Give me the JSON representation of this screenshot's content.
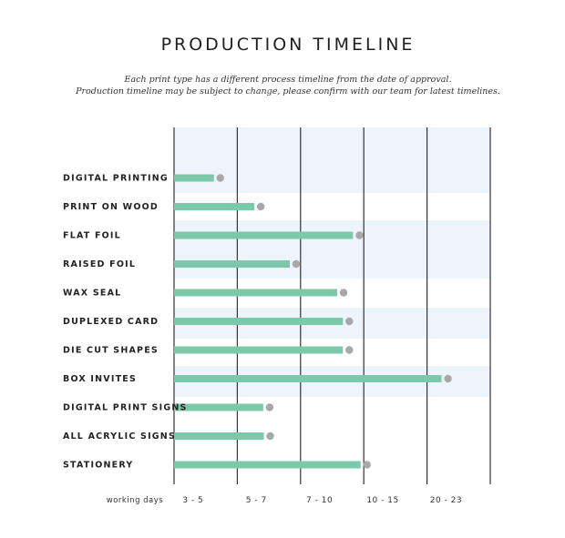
{
  "title": "PRODUCTION TIMELINE",
  "subtitle_lines": [
    "Each print type has a different process timeline from the date of approval.",
    "Production timeline may be subject to change, please confirm with our team for latest timelines."
  ],
  "colors": {
    "bar": "#7cc8ab",
    "dot": "#a8a8a8",
    "band": "#eef4fb",
    "grid": "#333333",
    "text": "#222222"
  },
  "chart_data": {
    "type": "bar",
    "orientation": "horizontal",
    "title": "PRODUCTION TIMELINE",
    "xlabel": "working days",
    "ylabel": "",
    "x_tick_labels": [
      "3 - 5",
      "5 - 7",
      "7 - 10",
      "10 - 15",
      "20 - 23"
    ],
    "xlim": [
      0,
      5
    ],
    "x_units": "timeline column (0 = start, each step = one working-day range column)",
    "grid": true,
    "legend": "none",
    "categories": [
      "DIGITAL PRINTING",
      "PRINT ON WOOD",
      "FLAT FOIL",
      "RAISED FOIL",
      "WAX SEAL",
      "DUPLEXED CARD",
      "DIE CUT SHAPES",
      "BOX INVITES",
      "DIGITAL PRINT SIGNS",
      "ALL ACRYLIC SIGNS",
      "STATIONERY"
    ],
    "values": [
      0.63,
      1.27,
      2.83,
      1.83,
      2.58,
      2.67,
      2.67,
      4.23,
      1.41,
      1.42,
      2.95
    ]
  }
}
